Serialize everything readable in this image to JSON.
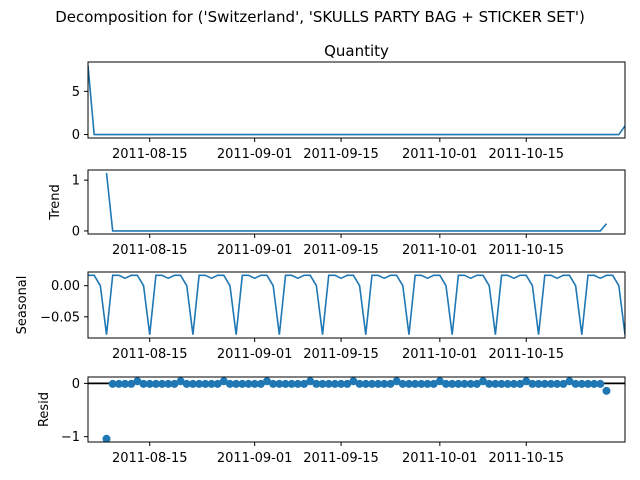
{
  "figure": {
    "suptitle": "Decomposition for ('Switzerland', 'SKULLS PARTY BAG + STICKER SET')"
  },
  "colors": {
    "line": "#1f77b4",
    "axis": "#000000",
    "zero_line": "#000000"
  },
  "chart_data": [
    {
      "type": "line",
      "title": "Quantity",
      "ylabel": "",
      "xlim": [
        "2011-08-05",
        "2011-10-31"
      ],
      "ylim": [
        -0.4,
        8.4
      ],
      "yticks": [
        0,
        5
      ],
      "xticks": [
        "2011-08-15",
        "2011-09-01",
        "2011-09-15",
        "2011-10-01",
        "2011-10-15"
      ],
      "series": [
        {
          "x": [
            "2011-08-05",
            "2011-08-06",
            "2011-10-30",
            "2011-10-31"
          ],
          "y": [
            8,
            0,
            0,
            1
          ]
        }
      ]
    },
    {
      "type": "line",
      "title": "",
      "ylabel": "Trend",
      "xlim": [
        "2011-08-05",
        "2011-10-31"
      ],
      "ylim": [
        -0.06,
        1.2
      ],
      "yticks": [
        0,
        1
      ],
      "xticks": [
        "2011-08-15",
        "2011-09-01",
        "2011-09-15",
        "2011-10-01",
        "2011-10-15"
      ],
      "series": [
        {
          "x": [
            "2011-08-08",
            "2011-08-09",
            "2011-10-27",
            "2011-10-28"
          ],
          "y": [
            1.143,
            0,
            0,
            0.143
          ]
        }
      ]
    },
    {
      "type": "line",
      "title": "",
      "ylabel": "Seasonal",
      "xlim": [
        "2011-08-05",
        "2011-10-31"
      ],
      "ylim": [
        -0.084,
        0.022
      ],
      "yticks": [
        0,
        -0.05
      ],
      "ytick_labels": [
        "0.00",
        "−0.05"
      ],
      "xticks": [
        "2011-08-15",
        "2011-09-01",
        "2011-09-15",
        "2011-10-01",
        "2011-10-15"
      ],
      "pattern_start": "2011-08-05",
      "weekly_pattern": [
        0.0167,
        0.0167,
        0.0,
        -0.0786,
        0.0167,
        0.0167,
        0.0119
      ],
      "series": []
    },
    {
      "type": "scatter",
      "title": "",
      "ylabel": "Resid",
      "xlim": [
        "2011-08-05",
        "2011-10-31"
      ],
      "ylim": [
        -1.1,
        0.12
      ],
      "yticks": [
        0,
        -1
      ],
      "ytick_labels": [
        "0",
        "−1"
      ],
      "xticks": [
        "2011-08-15",
        "2011-09-01",
        "2011-09-15",
        "2011-10-01",
        "2011-10-15"
      ],
      "zero_line": true,
      "range_start": "2011-08-08",
      "range_end": "2011-10-28",
      "default_value": -0.01,
      "points": [
        {
          "x": "2011-08-08",
          "y": -1.04
        },
        {
          "x": "2011-10-28",
          "y": -0.14
        }
      ],
      "bumps": {
        "start": "2011-08-13",
        "every_days": 7,
        "value": 0.04
      },
      "series": []
    }
  ]
}
